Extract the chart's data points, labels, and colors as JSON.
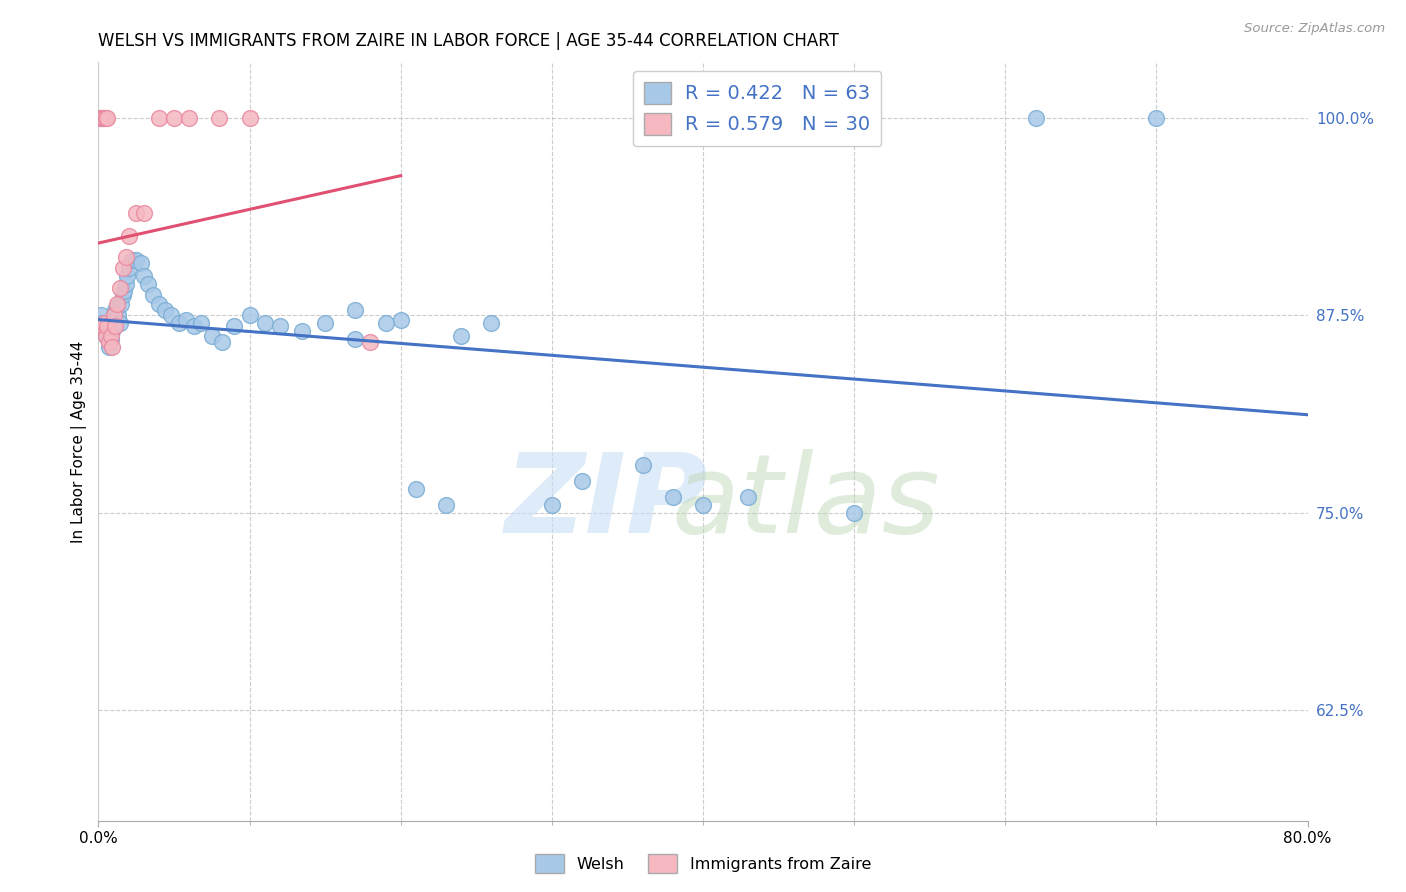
{
  "title": "WELSH VS IMMIGRANTS FROM ZAIRE IN LABOR FORCE | AGE 35-44 CORRELATION CHART",
  "source": "Source: ZipAtlas.com",
  "ylabel": "In Labor Force | Age 35-44",
  "xlim": [
    0.0,
    0.8
  ],
  "ylim": [
    0.555,
    1.035
  ],
  "yticks_right": [
    0.625,
    0.75,
    0.875,
    1.0
  ],
  "ytick_labels_right": [
    "62.5%",
    "75.0%",
    "87.5%",
    "100.0%"
  ],
  "grid_color": "#cccccc",
  "background_color": "#ffffff",
  "welsh_color": "#a8c8e8",
  "welsh_edge_color": "#7aadd4",
  "zaire_color": "#f5b8c0",
  "zaire_edge_color": "#e888a0",
  "welsh_line_color": "#4472c4",
  "zaire_line_color": "#e05070",
  "legend_welsh_label": "R = 0.422   N = 63",
  "legend_zaire_label": "R = 0.579   N = 30",
  "welsh_x": [
    0.001,
    0.002,
    0.002,
    0.003,
    0.003,
    0.004,
    0.005,
    0.005,
    0.006,
    0.007,
    0.008,
    0.008,
    0.009,
    0.01,
    0.01,
    0.011,
    0.012,
    0.013,
    0.014,
    0.015,
    0.016,
    0.017,
    0.018,
    0.019,
    0.02,
    0.022,
    0.025,
    0.028,
    0.03,
    0.033,
    0.036,
    0.04,
    0.044,
    0.048,
    0.053,
    0.058,
    0.063,
    0.068,
    0.075,
    0.082,
    0.09,
    0.1,
    0.11,
    0.12,
    0.135,
    0.15,
    0.17,
    0.19,
    0.21,
    0.23,
    0.17,
    0.2,
    0.24,
    0.26,
    0.3,
    0.32,
    0.36,
    0.38,
    0.4,
    0.43,
    0.5,
    0.62,
    0.7
  ],
  "welsh_y": [
    0.87,
    0.875,
    0.868,
    0.87,
    0.865,
    0.868,
    0.87,
    0.862,
    0.868,
    0.855,
    0.86,
    0.87,
    0.865,
    0.868,
    0.875,
    0.878,
    0.88,
    0.875,
    0.87,
    0.882,
    0.888,
    0.89,
    0.895,
    0.9,
    0.905,
    0.91,
    0.91,
    0.908,
    0.9,
    0.895,
    0.888,
    0.882,
    0.878,
    0.875,
    0.87,
    0.872,
    0.868,
    0.87,
    0.862,
    0.858,
    0.868,
    0.875,
    0.87,
    0.868,
    0.865,
    0.87,
    0.86,
    0.87,
    0.765,
    0.755,
    0.878,
    0.872,
    0.862,
    0.87,
    0.755,
    0.77,
    0.78,
    0.76,
    0.755,
    0.76,
    0.75,
    1.0,
    1.0
  ],
  "zaire_x": [
    0.001,
    0.001,
    0.002,
    0.002,
    0.003,
    0.003,
    0.004,
    0.004,
    0.005,
    0.005,
    0.006,
    0.006,
    0.007,
    0.008,
    0.009,
    0.01,
    0.011,
    0.012,
    0.014,
    0.016,
    0.018,
    0.02,
    0.025,
    0.03,
    0.04,
    0.05,
    0.06,
    0.08,
    0.1,
    0.18
  ],
  "zaire_y": [
    0.868,
    1.0,
    0.868,
    1.0,
    0.868,
    1.0,
    0.87,
    1.0,
    0.862,
    1.0,
    0.868,
    1.0,
    0.858,
    0.862,
    0.855,
    0.875,
    0.868,
    0.882,
    0.892,
    0.905,
    0.912,
    0.925,
    0.94,
    0.94,
    1.0,
    1.0,
    1.0,
    1.0,
    1.0,
    0.858
  ]
}
